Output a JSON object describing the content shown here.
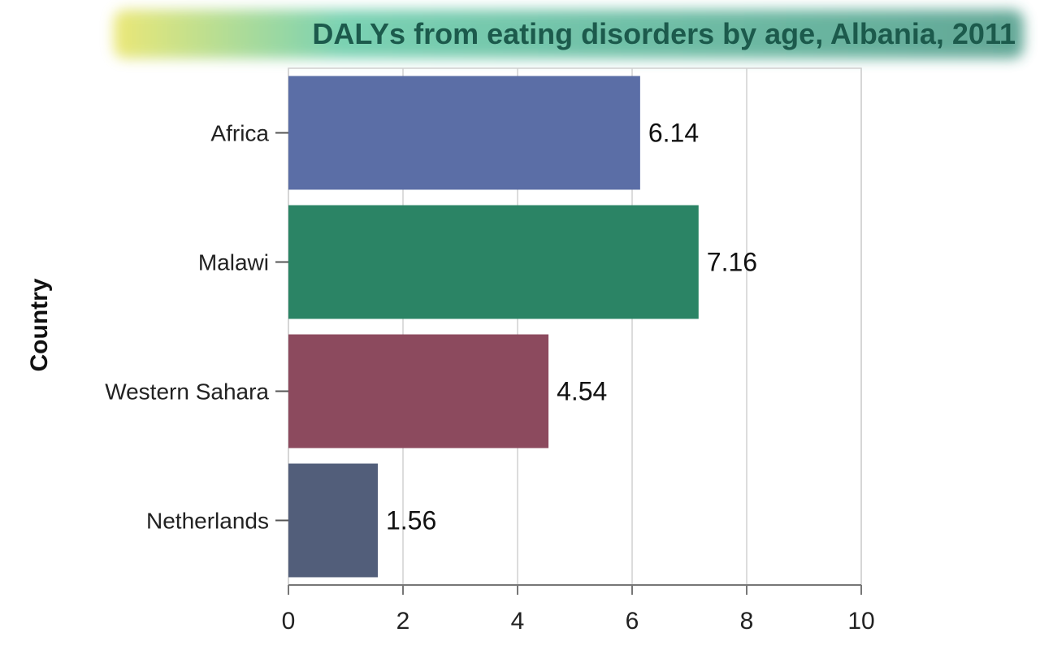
{
  "chart_data": {
    "type": "bar",
    "orientation": "horizontal",
    "title": "DALYs from eating disorders by age, Albania, 2011",
    "xlabel": "",
    "ylabel": "Country",
    "categories": [
      "Africa",
      "Malawi",
      "Western Sahara",
      "Netherlands"
    ],
    "values": [
      6.14,
      7.16,
      4.54,
      1.56
    ],
    "value_labels": [
      "6.14",
      "7.16",
      "4.54",
      "1.56"
    ],
    "colors": [
      "#5b6ea6",
      "#2b8465",
      "#8c4a5e",
      "#525e7a"
    ],
    "xlim": [
      0,
      10
    ],
    "xticks": [
      0,
      2,
      4,
      6,
      8,
      10
    ],
    "grid": true,
    "legend": "none",
    "title_highlight_colors": [
      "#e5e04a",
      "#4fc39a",
      "#2e8a74"
    ]
  }
}
